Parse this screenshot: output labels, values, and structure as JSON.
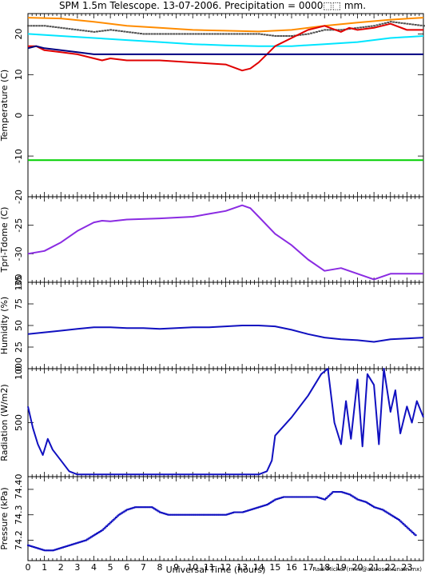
{
  "header": {
    "title": "SPM 1.5m Telescope. 13-07-2006. Precipitation = 0000⬚⬚ mm."
  },
  "footer": {
    "xlabel": "Universal Time (hours)",
    "credit": "Raul Michel (rmm@astrosen.unam.mx)"
  },
  "colors": {
    "orange": "#ff8c00",
    "gray": "#505050",
    "cyan": "#00e5ff",
    "red": "#e00000",
    "navy": "#000080",
    "blue": "#1010c0",
    "green": "#00d000",
    "purple": "#8a2be2"
  },
  "chart_data": [
    {
      "type": "line",
      "ylabel": "Temperature (C)",
      "xlim": [
        0,
        24
      ],
      "ylim": [
        -20,
        25
      ],
      "yticks": [
        -20,
        -10,
        0,
        10,
        20
      ],
      "xticks": [
        0,
        1,
        2,
        3,
        4,
        5,
        6,
        7,
        8,
        9,
        10,
        11,
        12,
        13,
        14,
        15,
        16,
        17,
        18,
        19,
        20,
        21,
        22,
        23
      ],
      "series": [
        {
          "color": "orange",
          "style": "line",
          "x": [
            0,
            2,
            4,
            6,
            8,
            10,
            12,
            14,
            16,
            18,
            20,
            22,
            24
          ],
          "y": [
            24,
            23.8,
            23,
            22,
            21.5,
            21,
            20.8,
            20.6,
            21,
            22,
            22.8,
            23.5,
            24
          ]
        },
        {
          "color": "gray",
          "style": "dots",
          "x": [
            0,
            1,
            2,
            3,
            4,
            5,
            6,
            7,
            8,
            9,
            10,
            11,
            12,
            13,
            14,
            15,
            16,
            17,
            18,
            19,
            20,
            21,
            22,
            23,
            24
          ],
          "y": [
            22,
            22,
            21.5,
            21,
            20.5,
            21,
            20.5,
            20,
            20,
            20,
            20,
            20,
            20,
            20,
            20,
            19.5,
            19.5,
            20,
            21,
            21,
            21.5,
            22,
            23,
            22.5,
            22
          ]
        },
        {
          "color": "cyan",
          "style": "line",
          "x": [
            0,
            2,
            4,
            6,
            8,
            10,
            12,
            14,
            16,
            18,
            20,
            22,
            24
          ],
          "y": [
            20,
            19.5,
            19,
            18.5,
            18,
            17.5,
            17.2,
            17,
            17,
            17.5,
            18,
            19,
            19.5
          ]
        },
        {
          "color": "red",
          "style": "line",
          "x": [
            0,
            0.5,
            1,
            2,
            3,
            4,
            4.5,
            5,
            6,
            8,
            10,
            12,
            13,
            13.5,
            14,
            15,
            16,
            17,
            18,
            19,
            19.5,
            20,
            21,
            22,
            23,
            24
          ],
          "y": [
            17,
            17,
            16,
            15.5,
            15,
            14,
            13.5,
            14,
            13.5,
            13.5,
            13,
            12.5,
            11,
            11.5,
            13,
            17,
            19,
            21,
            22,
            20.5,
            21.5,
            21,
            21.5,
            22.5,
            21,
            21
          ]
        },
        {
          "color": "navy",
          "style": "line",
          "x": [
            0,
            0.5,
            1,
            2,
            3,
            4,
            24
          ],
          "y": [
            16.5,
            17,
            16.5,
            16,
            15.5,
            15,
            15
          ]
        },
        {
          "color": "green",
          "style": "line",
          "x": [
            0,
            24
          ],
          "y": [
            -11,
            -11
          ]
        }
      ]
    },
    {
      "type": "line",
      "ylabel": "Tpri-Tdome (C)",
      "xlim": [
        0,
        24
      ],
      "ylim": [
        -35,
        -20
      ],
      "yticks": [
        -35,
        -30,
        -25
      ],
      "series": [
        {
          "color": "purple",
          "style": "line",
          "x": [
            0,
            1,
            2,
            3,
            4,
            4.5,
            5,
            6,
            8,
            10,
            11,
            12,
            13,
            13.5,
            14,
            15,
            16,
            17,
            18,
            19,
            20,
            21,
            22,
            23,
            24
          ],
          "y": [
            -30,
            -29.5,
            -28,
            -26,
            -24.5,
            -24.2,
            -24.3,
            -24,
            -23.8,
            -23.5,
            -23,
            -22.5,
            -21.5,
            -22,
            -23.5,
            -26.5,
            -28.5,
            -31,
            -33,
            -32.5,
            -33.5,
            -34.5,
            -33.5,
            -33.5,
            -33.5
          ]
        }
      ]
    },
    {
      "type": "line",
      "ylabel": "Humidity (%)",
      "xlim": [
        0,
        24
      ],
      "ylim": [
        0,
        100
      ],
      "yticks": [
        0,
        25,
        50,
        75,
        100
      ],
      "series": [
        {
          "color": "blue",
          "style": "line",
          "x": [
            0,
            1,
            2,
            3,
            4,
            5,
            6,
            7,
            8,
            9,
            10,
            11,
            12,
            13,
            14,
            15,
            16,
            17,
            18,
            19,
            20,
            21,
            22,
            23,
            24
          ],
          "y": [
            40,
            42,
            44,
            46,
            48,
            48,
            47,
            47,
            46,
            47,
            48,
            48,
            49,
            50,
            50,
            49,
            45,
            40,
            36,
            34,
            33,
            31,
            34,
            35,
            36
          ]
        }
      ]
    },
    {
      "type": "line",
      "ylabel": "Radiation (W/m2)",
      "xlim": [
        0,
        24
      ],
      "ylim": [
        0,
        1000
      ],
      "yticks": [
        0,
        500,
        1000
      ],
      "series": [
        {
          "color": "blue",
          "style": "line",
          "x": [
            0,
            0.3,
            0.6,
            0.9,
            1.2,
            1.5,
            2,
            2.5,
            3,
            4,
            6,
            8,
            10,
            12,
            14,
            14.5,
            14.8,
            15,
            16,
            17,
            17.8,
            18.2,
            18.6,
            19,
            19.3,
            19.6,
            20,
            20.3,
            20.6,
            21,
            21.3,
            21.6,
            22,
            22.3,
            22.6,
            23,
            23.3,
            23.6,
            24
          ],
          "y": [
            650,
            450,
            300,
            200,
            350,
            250,
            150,
            50,
            20,
            20,
            20,
            20,
            20,
            20,
            20,
            50,
            150,
            380,
            550,
            750,
            950,
            1000,
            500,
            300,
            700,
            350,
            900,
            280,
            950,
            850,
            300,
            1000,
            600,
            800,
            400,
            650,
            500,
            700,
            550
          ]
        }
      ]
    },
    {
      "type": "scatter",
      "ylabel": "Pressure (kPa)",
      "xlim": [
        0,
        24
      ],
      "ylim": [
        74.12,
        74.45
      ],
      "yticks": [
        74.2,
        74.3,
        74.4
      ],
      "series": [
        {
          "color": "blue",
          "style": "dots",
          "x": [
            0,
            0.5,
            1,
            1.5,
            2,
            2.5,
            3,
            3.5,
            4,
            4.5,
            5,
            5.5,
            6,
            6.5,
            7,
            7.5,
            8,
            8.5,
            9,
            9.5,
            10,
            10.5,
            11,
            11.5,
            12,
            12.5,
            13,
            13.5,
            14,
            14.5,
            15,
            15.5,
            16,
            16.5,
            17,
            17.5,
            18,
            18.5,
            19,
            19.5,
            20,
            20.5,
            21,
            21.5,
            22,
            22.5,
            23,
            23.5
          ],
          "y": [
            74.18,
            74.17,
            74.16,
            74.16,
            74.17,
            74.18,
            74.19,
            74.2,
            74.22,
            74.24,
            74.27,
            74.3,
            74.32,
            74.33,
            74.33,
            74.33,
            74.31,
            74.3,
            74.3,
            74.3,
            74.3,
            74.3,
            74.3,
            74.3,
            74.3,
            74.31,
            74.31,
            74.32,
            74.33,
            74.34,
            74.36,
            74.37,
            74.37,
            74.37,
            74.37,
            74.37,
            74.36,
            74.39,
            74.39,
            74.38,
            74.36,
            74.35,
            74.33,
            74.32,
            74.3,
            74.28,
            74.25,
            74.22
          ]
        }
      ]
    }
  ]
}
